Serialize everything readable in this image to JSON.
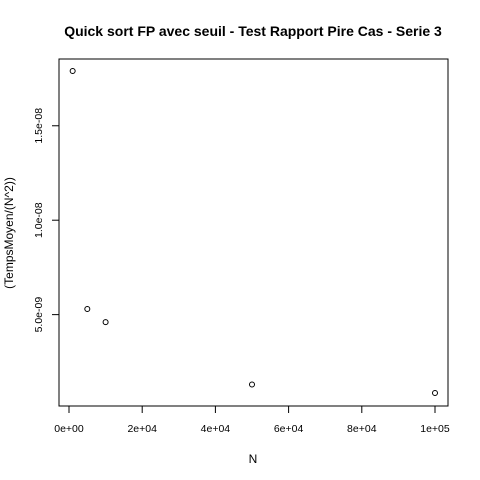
{
  "chart_data": {
    "type": "scatter",
    "title": "Quick sort FP avec seuil - Test Rapport Pire Cas - Serie 3",
    "xlabel": "N",
    "ylabel": "(TempsMoyen/(N^2))",
    "x": [
      1000,
      5000,
      10000,
      50000,
      100000
    ],
    "y": [
      1.79e-08,
      5.3e-09,
      4.6e-09,
      1.3e-09,
      8.5e-10
    ],
    "xlim": [
      0,
      100000
    ],
    "ylim": [
      8.5e-10,
      1.79e-08
    ],
    "xticks": [
      0,
      20000,
      40000,
      60000,
      80000,
      100000
    ],
    "xtick_labels": [
      "0e+00",
      "2e+04",
      "4e+04",
      "6e+04",
      "8e+04",
      "1e+05"
    ],
    "yticks": [
      5e-09,
      1e-08,
      1.5e-08
    ],
    "ytick_labels": [
      "5.0e-09",
      "1.0e-08",
      "1.5e-08"
    ],
    "grid": false,
    "legend": "none",
    "marker": "open-circle",
    "colors": {
      "points": "#000000",
      "axes": "#000000",
      "background": "#ffffff"
    }
  }
}
